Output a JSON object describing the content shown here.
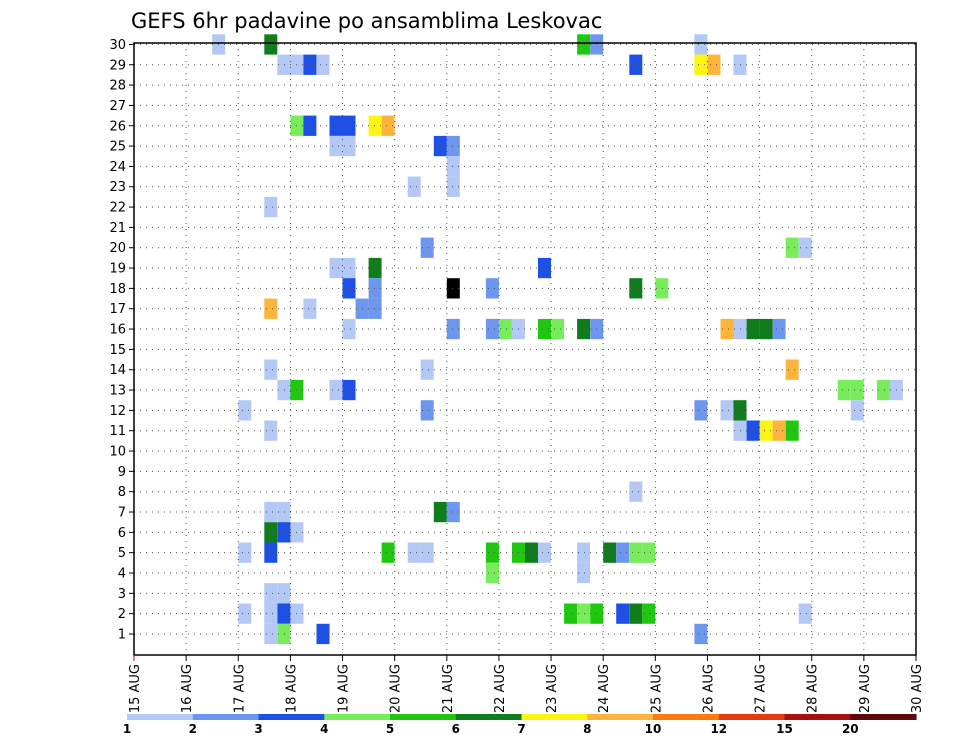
{
  "chart_data": {
    "type": "heatmap",
    "title": "GEFS 6hr padavine po ansamblima Leskovac",
    "xlabel": "",
    "ylabel": "",
    "x_tick_labels": [
      "15 AUG",
      "16 AUG",
      "17 AUG",
      "18 AUG",
      "19 AUG",
      "20 AUG",
      "21 AUG",
      "22 AUG",
      "23 AUG",
      "24 AUG",
      "25 AUG",
      "26 AUG",
      "27 AUG",
      "28 AUG",
      "29 AUG",
      "30 AUG"
    ],
    "y_tick_labels": [
      "1",
      "2",
      "3",
      "4",
      "5",
      "6",
      "7",
      "8",
      "9",
      "10",
      "11",
      "12",
      "13",
      "14",
      "15",
      "16",
      "17",
      "18",
      "19",
      "20",
      "21",
      "22",
      "23",
      "24",
      "25",
      "26",
      "27",
      "28",
      "29",
      "30"
    ],
    "x_range": [
      "15 AUG 00Z",
      "30 AUG 00Z"
    ],
    "y_range": [
      1,
      30
    ],
    "grid": true,
    "colorbar": {
      "labels": [
        "1",
        "2",
        "3",
        "4",
        "5",
        "6",
        "7",
        "8",
        "10",
        "12",
        "15",
        "20"
      ],
      "colors": [
        "#b4c8f5",
        "#6d96ef",
        "#1e4fe6",
        "#78ec5a",
        "#1fc80f",
        "#0f7d1b",
        "#fcf514",
        "#fcb43a",
        "#fc790f",
        "#e6390f",
        "#a80f0f",
        "#5f0a0a"
      ]
    },
    "values": [
      [
        1.5,
        30,
        1
      ],
      [
        2.5,
        30,
        6
      ],
      [
        8.5,
        30,
        5
      ],
      [
        8.75,
        30,
        2
      ],
      [
        10.75,
        30,
        1
      ],
      [
        2.75,
        29,
        1
      ],
      [
        3.0,
        29,
        1
      ],
      [
        3.25,
        29,
        3
      ],
      [
        3.5,
        29,
        1
      ],
      [
        9.5,
        29,
        3
      ],
      [
        10.75,
        29,
        7
      ],
      [
        11.0,
        29,
        8
      ],
      [
        11.5,
        29,
        1
      ],
      [
        3.0,
        26,
        4
      ],
      [
        3.25,
        26,
        3
      ],
      [
        3.75,
        26,
        3
      ],
      [
        4.0,
        26,
        3
      ],
      [
        4.5,
        26,
        7
      ],
      [
        4.75,
        26,
        8
      ],
      [
        3.75,
        25,
        1
      ],
      [
        4.0,
        25,
        1
      ],
      [
        5.75,
        25,
        3
      ],
      [
        6.0,
        25,
        2
      ],
      [
        6.0,
        24,
        1
      ],
      [
        5.25,
        23,
        1
      ],
      [
        6.0,
        23,
        1
      ],
      [
        2.5,
        22,
        1
      ],
      [
        5.5,
        20,
        2
      ],
      [
        12.5,
        20,
        4
      ],
      [
        12.75,
        20,
        1
      ],
      [
        3.75,
        19,
        1
      ],
      [
        4.0,
        19,
        1
      ],
      [
        4.5,
        19,
        6
      ],
      [
        7.75,
        19,
        3
      ],
      [
        4.0,
        18,
        3
      ],
      [
        4.5,
        18,
        2
      ],
      [
        6.0,
        18,
        14
      ],
      [
        6.75,
        18,
        2
      ],
      [
        9.5,
        18,
        6
      ],
      [
        10.0,
        18,
        4
      ],
      [
        2.5,
        17,
        8
      ],
      [
        3.25,
        17,
        1
      ],
      [
        4.25,
        17,
        2
      ],
      [
        4.5,
        17,
        2
      ],
      [
        4.0,
        16,
        1
      ],
      [
        6.0,
        16,
        2
      ],
      [
        6.75,
        16,
        2
      ],
      [
        7.0,
        16,
        4
      ],
      [
        7.25,
        16,
        1
      ],
      [
        7.75,
        16,
        5
      ],
      [
        8.0,
        16,
        4
      ],
      [
        8.5,
        16,
        6
      ],
      [
        8.75,
        16,
        2
      ],
      [
        11.25,
        16,
        8
      ],
      [
        11.5,
        16,
        1
      ],
      [
        11.75,
        16,
        6
      ],
      [
        12.0,
        16,
        6
      ],
      [
        12.25,
        16,
        2
      ],
      [
        2.5,
        14,
        1
      ],
      [
        5.5,
        14,
        1
      ],
      [
        12.5,
        14,
        8
      ],
      [
        2.75,
        13,
        1
      ],
      [
        3.0,
        13,
        5
      ],
      [
        3.75,
        13,
        1
      ],
      [
        4.0,
        13,
        3
      ],
      [
        13.5,
        13,
        4
      ],
      [
        13.75,
        13,
        4
      ],
      [
        14.25,
        13,
        4
      ],
      [
        14.5,
        13,
        1
      ],
      [
        2.0,
        12,
        1
      ],
      [
        5.5,
        12,
        2
      ],
      [
        10.75,
        12,
        2
      ],
      [
        11.25,
        12,
        1
      ],
      [
        11.5,
        12,
        6
      ],
      [
        13.75,
        12,
        1
      ],
      [
        2.5,
        11,
        1
      ],
      [
        11.5,
        11,
        1
      ],
      [
        11.75,
        11,
        3
      ],
      [
        12.0,
        11,
        7
      ],
      [
        12.25,
        11,
        8
      ],
      [
        12.5,
        11,
        5
      ],
      [
        9.5,
        8,
        1
      ],
      [
        2.5,
        7,
        1
      ],
      [
        2.75,
        7,
        1
      ],
      [
        5.75,
        7,
        6
      ],
      [
        6.0,
        7,
        2
      ],
      [
        2.5,
        6,
        6
      ],
      [
        2.75,
        6,
        3
      ],
      [
        3.0,
        6,
        1
      ],
      [
        2.0,
        5,
        1
      ],
      [
        2.5,
        5,
        3
      ],
      [
        4.75,
        5,
        5
      ],
      [
        5.25,
        5,
        1
      ],
      [
        5.5,
        5,
        1
      ],
      [
        6.75,
        5,
        5
      ],
      [
        7.25,
        5,
        5
      ],
      [
        7.5,
        5,
        6
      ],
      [
        7.75,
        5,
        1
      ],
      [
        8.5,
        5,
        1
      ],
      [
        9.0,
        5,
        6
      ],
      [
        9.25,
        5,
        2
      ],
      [
        9.5,
        5,
        4
      ],
      [
        9.75,
        5,
        4
      ],
      [
        6.75,
        4,
        4
      ],
      [
        8.5,
        4,
        1
      ],
      [
        2.5,
        3,
        1
      ],
      [
        2.75,
        3,
        1
      ],
      [
        2.0,
        2,
        1
      ],
      [
        2.5,
        2,
        1
      ],
      [
        2.75,
        2,
        3
      ],
      [
        3.0,
        2,
        1
      ],
      [
        8.25,
        2,
        5
      ],
      [
        8.5,
        2,
        4
      ],
      [
        8.75,
        2,
        5
      ],
      [
        9.25,
        2,
        3
      ],
      [
        9.5,
        2,
        6
      ],
      [
        9.75,
        2,
        5
      ],
      [
        12.75,
        2,
        1
      ],
      [
        2.5,
        1,
        1
      ],
      [
        2.75,
        1,
        4
      ],
      [
        3.5,
        1,
        3
      ],
      [
        10.75,
        1,
        2
      ]
    ]
  }
}
